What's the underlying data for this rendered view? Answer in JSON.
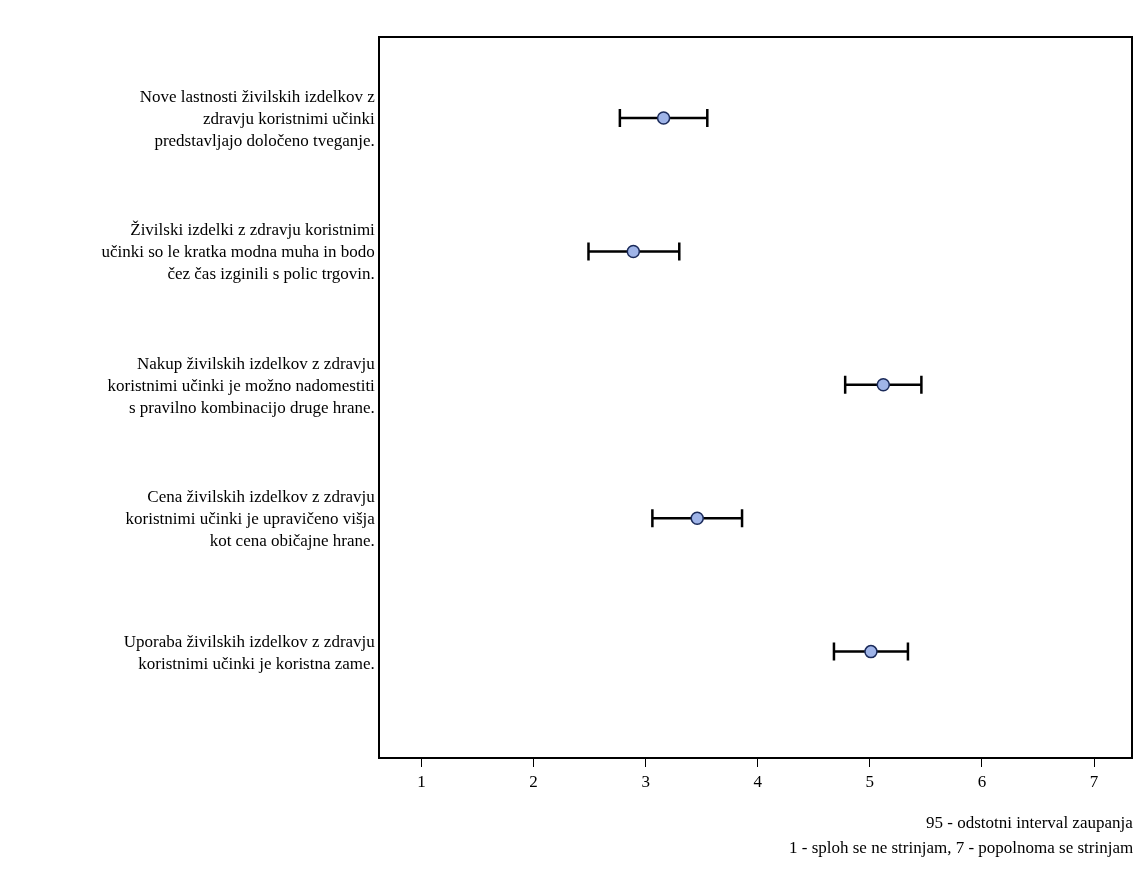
{
  "chart_data": {
    "type": "scatter",
    "orientation": "horizontal",
    "categories": [
      "Nove lastnosti živilskih izdelkov z zdravju koristnimi učinki predstavljajo določeno tveganje.",
      "Živilski izdelki z zdravju koristnimi učinki so le kratka modna muha in bodo čez čas izginili s polic trgovin.",
      "Nakup živilskih izdelkov z zdravju koristnimi učinki je možno nadomestiti s pravilno kombinacijo druge hrane.",
      "Cena živilskih izdelkov z zdravju koristnimi učinki je upravičeno višja kot cena običajne hrane.",
      "Uporaba živilskih izdelkov z zdravju koristnimi učinki je koristna zame."
    ],
    "values": [
      3.16,
      2.89,
      5.12,
      3.46,
      5.01
    ],
    "errors": [
      [
        2.77,
        3.55
      ],
      [
        2.49,
        3.3
      ],
      [
        4.78,
        5.46
      ],
      [
        3.06,
        3.86
      ],
      [
        4.68,
        5.34
      ]
    ],
    "color": "#9fb4e8",
    "marker": "circle",
    "grid": false,
    "xlim": [
      0.63,
      7.33
    ],
    "xticks": [
      1,
      2,
      3,
      4,
      5,
      6,
      7
    ],
    "annotations": [
      "95 - odstotni interval zaupanja",
      "1 - sploh se ne strinjam, 7 - popolnoma se strinjam"
    ]
  }
}
